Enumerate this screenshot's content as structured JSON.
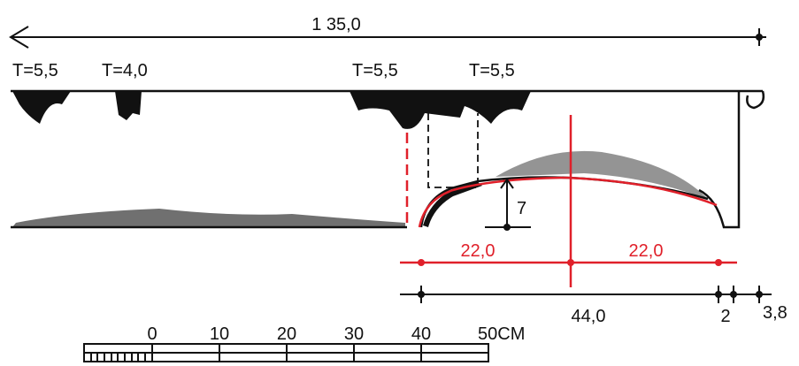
{
  "top_dimension": "1 35,0",
  "thickness_labels": [
    "T=5,5",
    "T=4,0",
    "T=5,5",
    "T=5,5"
  ],
  "height_label": "7",
  "red_dimensions": [
    "22,0",
    "22,0"
  ],
  "bottom_dimensions": [
    "44,0",
    "2",
    "3,8"
  ],
  "scale_labels": [
    "0",
    "10",
    "20",
    "30",
    "40",
    "50CM"
  ]
}
